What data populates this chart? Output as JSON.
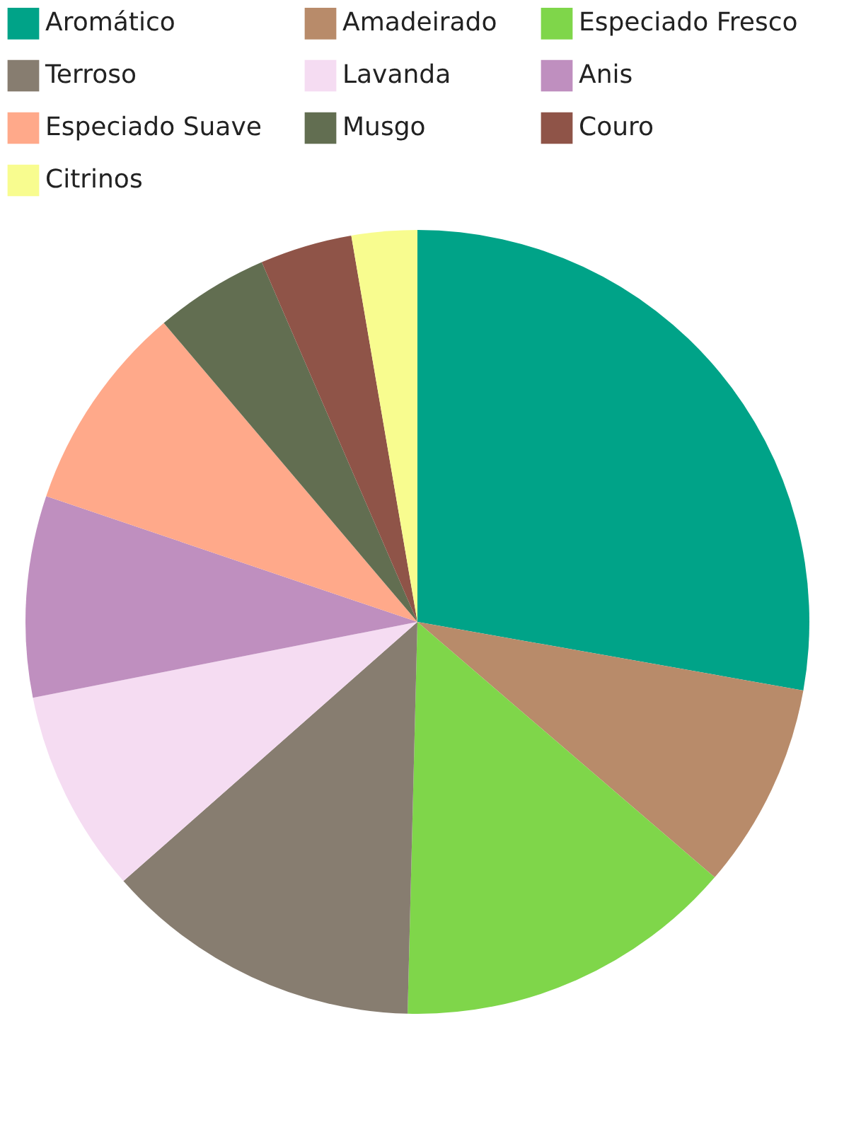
{
  "chart_data": {
    "type": "pie",
    "categories": [
      "Aromático",
      "Amadeirado",
      "Especiado Fresco",
      "Terroso",
      "Lavanda",
      "Anis",
      "Especiado Suave",
      "Musgo",
      "Couro",
      "Citrinos"
    ],
    "values": [
      27.8,
      8.5,
      14.1,
      13.1,
      8.4,
      8.3,
      8.6,
      4.7,
      3.8,
      2.7
    ],
    "colors": [
      "#00a388",
      "#b88b6a",
      "#7fd64a",
      "#877d70",
      "#f5dcf2",
      "#bf8fbf",
      "#ffa98a",
      "#626e51",
      "#8f5448",
      "#f8fc8f"
    ],
    "legend": "top"
  }
}
